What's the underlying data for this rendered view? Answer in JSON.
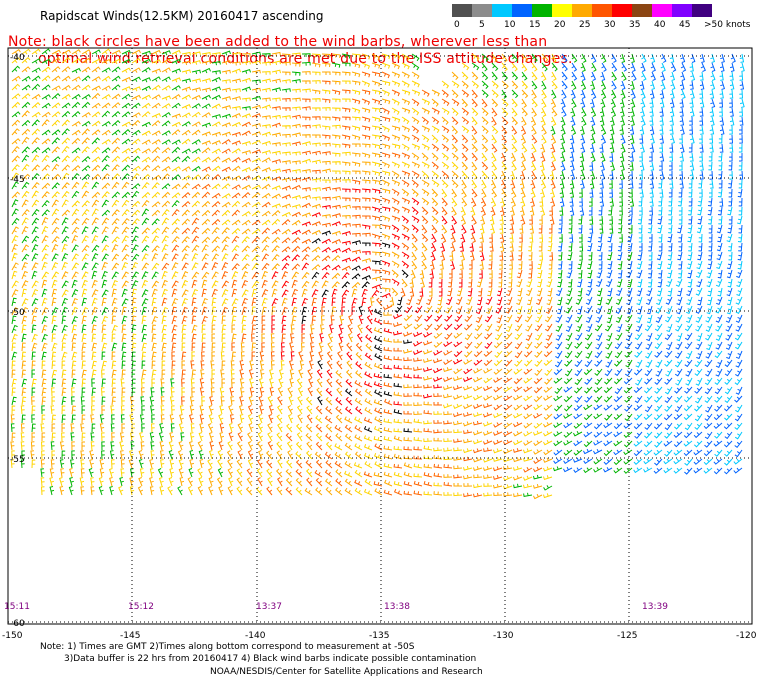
{
  "header": {
    "title": "Rapidscat Winds(12.5KM) 20160417 ascending",
    "note_line1": "Note: black circles have been added to the wind barbs, wherever less than",
    "note_line2": "optimal wind retrieval conditions are met due to the ISS attitude changes."
  },
  "speed_scale": {
    "labels": [
      "0",
      "5",
      "10",
      "15",
      "20",
      "25",
      "30",
      "35",
      "40",
      "45",
      ">50 knots"
    ],
    "colors": [
      "#505050",
      "#8c8c8c",
      "#00c8ff",
      "#0064ff",
      "#00b400",
      "#ffff00",
      "#ffaa00",
      "#ff5500",
      "#ff0000",
      "#8b4513",
      "#ff00ff",
      "#8000ff",
      "#400080"
    ]
  },
  "map": {
    "lat_labels": [
      "-40",
      "-45",
      "-50",
      "-55",
      "-60"
    ],
    "lon_labels": [
      "-150",
      "-145",
      "-140",
      "-135",
      "-130",
      "-125",
      "-120"
    ],
    "time_labels": [
      "15:11",
      "15:12",
      "13:37",
      "13:38",
      "13:39"
    ],
    "time_color": "#800080",
    "grid": "dotted"
  },
  "footer": {
    "line1": "Note: 1) Times are GMT 2)Times along bottom correspond to measurement at -50S",
    "line2": "3)Data buffer is 22 hrs from 20160417 4) Black wind barbs indicate possible contamination",
    "line3": "NOAA/NESDIS/Center for Satellite Applications and Research"
  }
}
